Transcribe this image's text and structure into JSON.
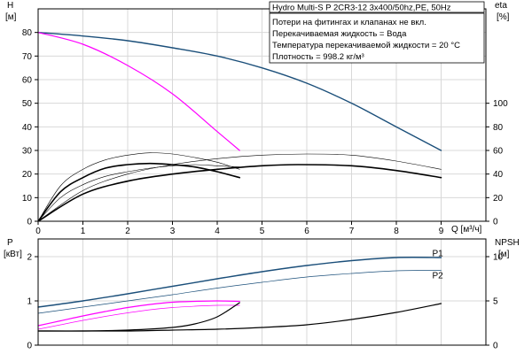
{
  "chart_data": [
    {
      "type": "line",
      "id": "top",
      "header": "Hydro Multi-S P 2CR3-12 3x400/50hz,PE, 50Hz",
      "notes": [
        "Потери на фитингах и клапанах не вкл.",
        "Перекачиваемая жидкость = Вода",
        "Температура перекачиваемой жидкости = 20 °C",
        "Плотность = 998.2 кг/м³"
      ],
      "left_axis": {
        "label_line1": "H",
        "label_line2": "[м]",
        "ylim": [
          0,
          90
        ],
        "ticks": [
          0,
          10,
          20,
          30,
          40,
          50,
          60,
          70,
          80
        ]
      },
      "right_axis": {
        "label_line1": "eta",
        "label_line2": "[%]",
        "ylim": [
          0,
          180
        ],
        "ticks": [
          0,
          20,
          40,
          60,
          80,
          100
        ]
      },
      "x_axis": {
        "label": "Q [м³/ч]",
        "xlim": [
          0,
          10
        ],
        "ticks": [
          0,
          1,
          2,
          3,
          4,
          5,
          6,
          7,
          8,
          9
        ]
      },
      "series": [
        {
          "axis": "left",
          "color": "#1b4f7a",
          "width": 1.4,
          "x": [
            0,
            1,
            2,
            3,
            4,
            5,
            6,
            7,
            8,
            9
          ],
          "y": [
            80,
            78.5,
            76.5,
            73.5,
            70,
            65,
            58.5,
            50,
            40,
            30
          ]
        },
        {
          "axis": "left",
          "color": "#ff00ff",
          "width": 1.2,
          "x": [
            0,
            1,
            2,
            3,
            4,
            4.5
          ],
          "y": [
            80,
            75,
            66,
            54,
            38,
            30
          ]
        },
        {
          "axis": "right",
          "color": "#000000",
          "width": 1.6,
          "x": [
            0,
            1,
            2,
            3,
            4,
            5,
            5.8,
            7,
            8,
            9
          ],
          "y": [
            0,
            23,
            34,
            40,
            44,
            47,
            48,
            47,
            43,
            37
          ]
        },
        {
          "axis": "right",
          "color": "#000000",
          "width": 0.6,
          "x": [
            0,
            1,
            2,
            3,
            4,
            5,
            6,
            7,
            8,
            9
          ],
          "y": [
            0,
            26,
            40,
            48,
            53,
            56,
            57,
            56,
            51,
            44
          ]
        },
        {
          "axis": "right",
          "color": "#000000",
          "width": 1.6,
          "x": [
            0,
            0.5,
            1,
            1.5,
            2,
            2.5,
            3,
            3.5,
            4,
            4.5
          ],
          "y": [
            0,
            25,
            37,
            45,
            48,
            49,
            48,
            46,
            42,
            37
          ]
        },
        {
          "axis": "right",
          "color": "#000000",
          "width": 0.6,
          "x": [
            0,
            0.5,
            1,
            1.5,
            2,
            2.5,
            3,
            3.5,
            4,
            4.5
          ],
          "y": [
            0,
            30,
            44,
            52,
            56,
            58,
            57,
            54,
            50,
            44
          ]
        },
        {
          "axis": "right",
          "color": "#000000",
          "width": 0.6,
          "x": [
            0,
            0.5,
            1,
            1.5,
            2,
            2.5,
            3,
            3.5,
            4,
            4.5
          ],
          "y": [
            0,
            20,
            31,
            38,
            42,
            45,
            47,
            48,
            47,
            46
          ]
        }
      ]
    },
    {
      "type": "line",
      "id": "bottom",
      "left_axis": {
        "label_line1": "P",
        "label_line2": "[кВт]",
        "ylim": [
          0,
          2.4
        ],
        "ticks": [
          0,
          1,
          2
        ]
      },
      "right_axis": {
        "label_line1": "NPSH",
        "label_line2": "[м]",
        "ylim": [
          0,
          12
        ],
        "ticks": [
          0,
          5,
          10
        ]
      },
      "x_axis": {
        "xlim": [
          0,
          10
        ]
      },
      "series": [
        {
          "name": "P1",
          "axis": "left",
          "color": "#1b4f7a",
          "width": 1.4,
          "x": [
            0,
            1,
            2,
            3,
            4,
            5,
            6,
            7,
            8,
            9
          ],
          "y": [
            0.86,
            1.0,
            1.16,
            1.33,
            1.5,
            1.66,
            1.8,
            1.91,
            1.98,
            1.98
          ]
        },
        {
          "name": "P2",
          "axis": "left",
          "color": "#1b4f7a",
          "width": 0.7,
          "x": [
            0,
            1,
            2,
            3,
            4,
            5,
            6,
            7,
            8,
            9
          ],
          "y": [
            0.72,
            0.86,
            1.0,
            1.14,
            1.29,
            1.42,
            1.54,
            1.62,
            1.68,
            1.69
          ]
        },
        {
          "axis": "left",
          "color": "#ff00ff",
          "width": 1.2,
          "x": [
            0,
            0.5,
            1,
            1.5,
            2,
            2.5,
            3,
            3.5,
            4,
            4.5
          ],
          "y": [
            0.44,
            0.55,
            0.66,
            0.76,
            0.85,
            0.92,
            0.97,
            0.99,
            1.0,
            0.99
          ]
        },
        {
          "axis": "left",
          "color": "#ff00ff",
          "width": 0.7,
          "x": [
            0,
            0.5,
            1,
            1.5,
            2,
            2.5,
            3,
            3.5,
            4,
            4.5
          ],
          "y": [
            0.36,
            0.46,
            0.56,
            0.65,
            0.73,
            0.8,
            0.85,
            0.88,
            0.9,
            0.9
          ]
        },
        {
          "axis": "right",
          "color": "#000000",
          "width": 1.2,
          "x": [
            0,
            1,
            2,
            3,
            4,
            5,
            6,
            7,
            8,
            9
          ],
          "y": [
            1.6,
            1.6,
            1.6,
            1.7,
            1.8,
            2.0,
            2.3,
            2.9,
            3.7,
            4.7
          ]
        },
        {
          "axis": "right",
          "color": "#000000",
          "width": 1.2,
          "x": [
            0,
            1,
            2,
            3,
            3.5,
            4,
            4.5
          ],
          "y": [
            1.6,
            1.6,
            1.7,
            2.0,
            2.4,
            3.2,
            4.8
          ]
        }
      ],
      "series_labels": [
        {
          "text": "P1",
          "x": 9.0,
          "y": 2.08
        },
        {
          "text": "P2",
          "x": 9.0,
          "y": 1.58
        }
      ]
    }
  ]
}
